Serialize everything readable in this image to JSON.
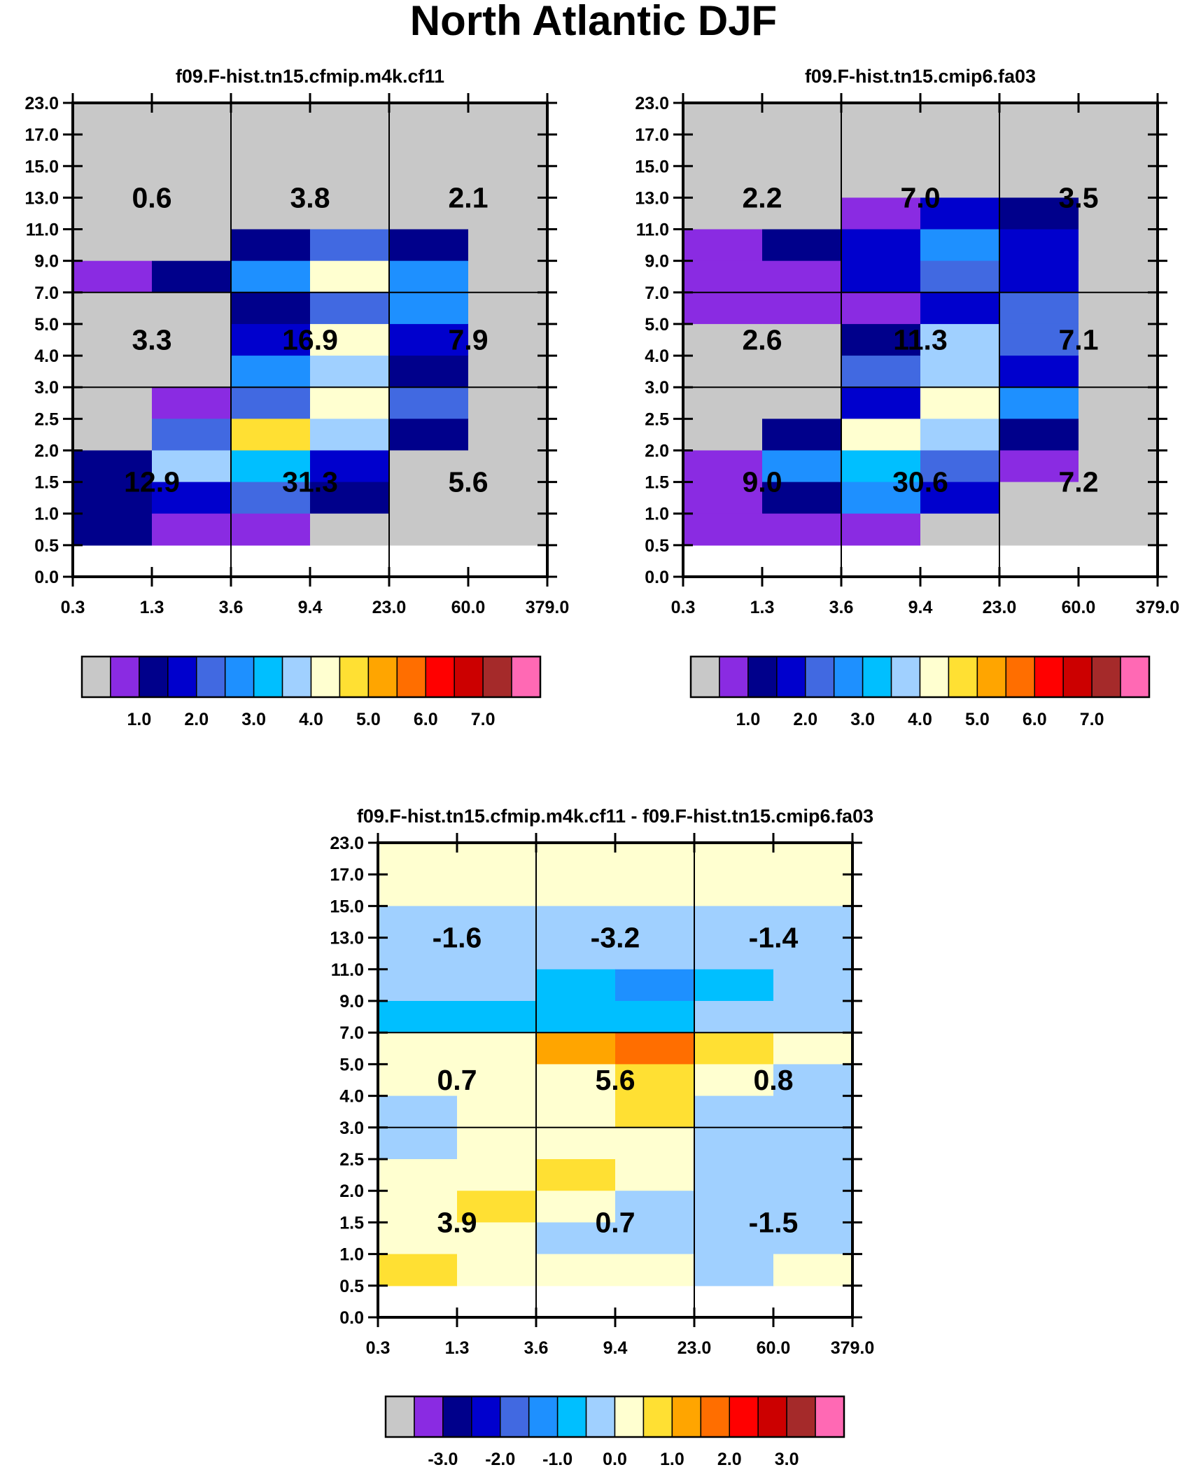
{
  "title": "North Atlantic DJF",
  "colors": {
    "palette": [
      "#c8c8c8",
      "#8a2be2",
      "#00008b",
      "#0000cd",
      "#4169e1",
      "#1e90ff",
      "#00bfff",
      "#a0d0ff",
      "#ffffd0",
      "#ffe033",
      "#ffa500",
      "#ff6e00",
      "#ff0000",
      "#cc0000",
      "#a52a2a",
      "#ff69b4"
    ],
    "grid_line": "#000000"
  },
  "chart_data": [
    {
      "type": "heatmap",
      "title": "f09.F-hist.tn15.cfmip.m4k.cf11",
      "x_tick_labels": [
        "0.3",
        "1.3",
        "3.6",
        "9.4",
        "23.0",
        "60.0",
        "379.0"
      ],
      "y_tick_labels": [
        "0.0",
        "0.5",
        "1.0",
        "1.5",
        "2.0",
        "2.5",
        "3.0",
        "4.0",
        "5.0",
        "7.0",
        "9.0",
        "11.0",
        "13.0",
        "15.0",
        "17.0",
        "23.0"
      ],
      "cells_top_to_bottom": [
        [
          0,
          0,
          0,
          0,
          0,
          0
        ],
        [
          0,
          0,
          0,
          0,
          0,
          0
        ],
        [
          0,
          0,
          0,
          0,
          0,
          0
        ],
        [
          0,
          0,
          0,
          0,
          0,
          0
        ],
        [
          0,
          0,
          2,
          4,
          2,
          0
        ],
        [
          1,
          2,
          5,
          8,
          5,
          0
        ],
        [
          0,
          0,
          2,
          4,
          5,
          0
        ],
        [
          0,
          0,
          3,
          8,
          3,
          0
        ],
        [
          0,
          0,
          5,
          7,
          2,
          0
        ],
        [
          0,
          1,
          4,
          8,
          4,
          0
        ],
        [
          0,
          4,
          9,
          7,
          2,
          0
        ],
        [
          2,
          7,
          6,
          3,
          0,
          0
        ],
        [
          2,
          3,
          4,
          2,
          0,
          0
        ],
        [
          2,
          1,
          1,
          0,
          0,
          0
        ]
      ],
      "region_labels": [
        {
          "col": 0,
          "row": 0,
          "text": "0.6"
        },
        {
          "col": 1,
          "row": 0,
          "text": "3.8"
        },
        {
          "col": 2,
          "row": 0,
          "text": "2.1"
        },
        {
          "col": 0,
          "row": 1,
          "text": "3.3"
        },
        {
          "col": 1,
          "row": 1,
          "text": "16.9"
        },
        {
          "col": 2,
          "row": 1,
          "text": "7.9"
        },
        {
          "col": 0,
          "row": 2,
          "text": "12.9"
        },
        {
          "col": 1,
          "row": 2,
          "text": "31.3"
        },
        {
          "col": 2,
          "row": 2,
          "text": "5.6"
        }
      ],
      "colorbar": {
        "tick_labels": [
          "1.0",
          "2.0",
          "3.0",
          "4.0",
          "5.0",
          "6.0",
          "7.0"
        ]
      }
    },
    {
      "type": "heatmap",
      "title": "f09.F-hist.tn15.cmip6.fa03",
      "x_tick_labels": [
        "0.3",
        "1.3",
        "3.6",
        "9.4",
        "23.0",
        "60.0",
        "379.0"
      ],
      "y_tick_labels": [
        "0.0",
        "0.5",
        "1.0",
        "1.5",
        "2.0",
        "2.5",
        "3.0",
        "4.0",
        "5.0",
        "7.0",
        "9.0",
        "11.0",
        "13.0",
        "15.0",
        "17.0",
        "23.0"
      ],
      "cells_top_to_bottom": [
        [
          0,
          0,
          0,
          0,
          0,
          0
        ],
        [
          0,
          0,
          0,
          0,
          0,
          0
        ],
        [
          0,
          0,
          0,
          0,
          0,
          0
        ],
        [
          0,
          0,
          1,
          3,
          2,
          0
        ],
        [
          1,
          2,
          3,
          5,
          3,
          0
        ],
        [
          1,
          1,
          3,
          4,
          3,
          0
        ],
        [
          1,
          1,
          1,
          3,
          4,
          0
        ],
        [
          0,
          0,
          2,
          7,
          4,
          0
        ],
        [
          0,
          0,
          4,
          7,
          3,
          0
        ],
        [
          0,
          0,
          3,
          8,
          5,
          0
        ],
        [
          0,
          2,
          8,
          7,
          2,
          0
        ],
        [
          1,
          5,
          6,
          4,
          1,
          0
        ],
        [
          1,
          2,
          5,
          3,
          0,
          0
        ],
        [
          1,
          1,
          1,
          0,
          0,
          0
        ]
      ],
      "region_labels": [
        {
          "col": 0,
          "row": 0,
          "text": "2.2"
        },
        {
          "col": 1,
          "row": 0,
          "text": "7.0"
        },
        {
          "col": 2,
          "row": 0,
          "text": "3.5"
        },
        {
          "col": 0,
          "row": 1,
          "text": "2.6"
        },
        {
          "col": 1,
          "row": 1,
          "text": "11.3"
        },
        {
          "col": 2,
          "row": 1,
          "text": "7.1"
        },
        {
          "col": 0,
          "row": 2,
          "text": "9.0"
        },
        {
          "col": 1,
          "row": 2,
          "text": "30.6"
        },
        {
          "col": 2,
          "row": 2,
          "text": "7.2"
        }
      ],
      "colorbar": {
        "tick_labels": [
          "1.0",
          "2.0",
          "3.0",
          "4.0",
          "5.0",
          "6.0",
          "7.0"
        ]
      }
    },
    {
      "type": "heatmap",
      "title": "f09.F-hist.tn15.cfmip.m4k.cf11 - f09.F-hist.tn15.cmip6.fa03",
      "x_tick_labels": [
        "0.3",
        "1.3",
        "3.6",
        "9.4",
        "23.0",
        "60.0",
        "379.0"
      ],
      "y_tick_labels": [
        "0.0",
        "0.5",
        "1.0",
        "1.5",
        "2.0",
        "2.5",
        "3.0",
        "4.0",
        "5.0",
        "7.0",
        "9.0",
        "11.0",
        "13.0",
        "15.0",
        "17.0",
        "23.0"
      ],
      "cells_top_to_bottom": [
        [
          8,
          8,
          8,
          8,
          8,
          8
        ],
        [
          8,
          8,
          8,
          8,
          8,
          8
        ],
        [
          7,
          7,
          7,
          7,
          7,
          7
        ],
        [
          7,
          7,
          7,
          7,
          7,
          7
        ],
        [
          7,
          7,
          6,
          5,
          6,
          7
        ],
        [
          6,
          6,
          6,
          6,
          7,
          7
        ],
        [
          8,
          8,
          10,
          11,
          9,
          8
        ],
        [
          8,
          8,
          8,
          9,
          8,
          7
        ],
        [
          7,
          8,
          8,
          9,
          7,
          7
        ],
        [
          7,
          8,
          8,
          8,
          7,
          7
        ],
        [
          8,
          8,
          9,
          8,
          7,
          7
        ],
        [
          8,
          9,
          8,
          7,
          7,
          7
        ],
        [
          8,
          8,
          7,
          7,
          7,
          7
        ],
        [
          9,
          8,
          8,
          8,
          7,
          8
        ]
      ],
      "region_labels": [
        {
          "col": 0,
          "row": 0,
          "text": "-1.6"
        },
        {
          "col": 1,
          "row": 0,
          "text": "-3.2"
        },
        {
          "col": 2,
          "row": 0,
          "text": "-1.4"
        },
        {
          "col": 0,
          "row": 1,
          "text": "0.7"
        },
        {
          "col": 1,
          "row": 1,
          "text": "5.6"
        },
        {
          "col": 2,
          "row": 1,
          "text": "0.8"
        },
        {
          "col": 0,
          "row": 2,
          "text": "3.9"
        },
        {
          "col": 1,
          "row": 2,
          "text": "0.7"
        },
        {
          "col": 2,
          "row": 2,
          "text": "-1.5"
        }
      ],
      "colorbar": {
        "tick_labels": [
          "-3.0",
          "-2.0",
          "-1.0",
          "0.0",
          "1.0",
          "2.0",
          "3.0"
        ]
      }
    }
  ]
}
